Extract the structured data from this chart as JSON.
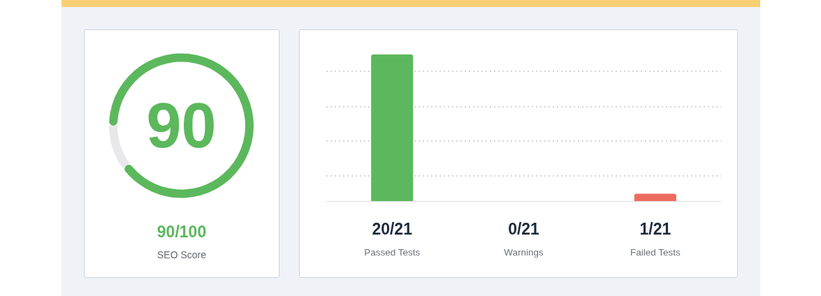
{
  "chart_data": [
    {
      "type": "donut",
      "categories": [
        null,
        null
      ],
      "values": [
        90,
        10
      ],
      "colors": [
        "#5cb85c",
        "#e8e8ea"
      ],
      "value_labels": [
        "90",
        null
      ],
      "title": "90/100",
      "subtitle": "SEO Score"
    },
    {
      "type": "bar",
      "categories": [
        "Passed Tests",
        "Warnings",
        "Failed Tests"
      ],
      "values": [
        20,
        0,
        1
      ],
      "colors": [
        "#5cb85c",
        null,
        "#ee6b5e"
      ],
      "value_labels": [
        "20/21",
        "0/21",
        "1/21"
      ],
      "yticks": [
        {
          "value": 3.5,
          "label": null
        },
        {
          "value": 8.2,
          "label": null
        },
        {
          "value": 12.9,
          "label": null
        },
        {
          "value": 17.7,
          "label": null
        }
      ],
      "grid": "y",
      "tick_labels": "x"
    }
  ]
}
